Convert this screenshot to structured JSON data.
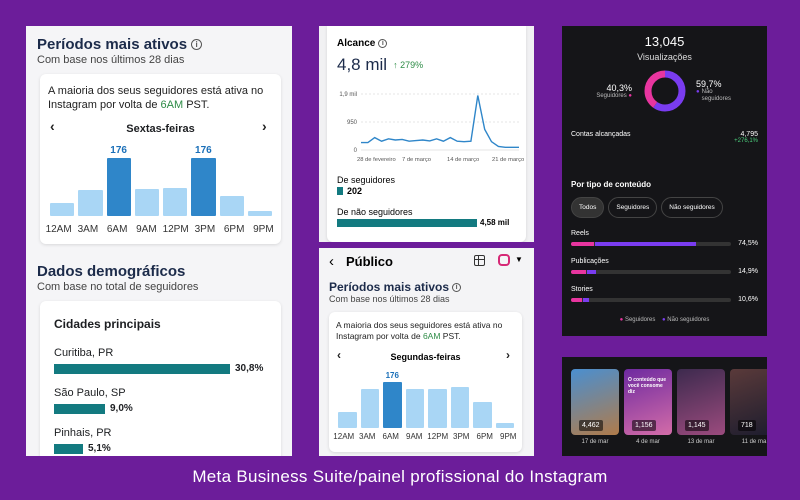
{
  "p1": {
    "title": "Períodos mais ativos",
    "subtitle": "Com base nos últimos 28 dias",
    "note_a": "A maioria dos seus seguidores está ativa no Instagram por volta de ",
    "note_hl": "6AM",
    "note_b": " PST.",
    "day": "Sextas-feiras",
    "hours": [
      "12AM",
      "3AM",
      "6AM",
      "9AM",
      "12PM",
      "3PM",
      "6PM",
      "9PM"
    ],
    "hour_values": [
      40,
      80,
      176,
      83,
      86,
      176,
      60,
      15
    ],
    "highlight_value": "176",
    "demo_title": "Dados demográficos",
    "demo_sub": "Com base no total de seguidores",
    "cities_title": "Cidades principais",
    "cities": [
      {
        "name": "Curitiba, PR",
        "pct": "30,8%",
        "value": 30.8
      },
      {
        "name": "São Paulo, SP",
        "pct": "9,0%",
        "value": 9.0
      },
      {
        "name": "Pinhais, PR",
        "pct": "5,1%",
        "value": 5.1
      }
    ]
  },
  "p2": {
    "title": "Alcance",
    "value": "4,8 mil",
    "delta": "↑ 279%",
    "y_ticks": [
      "1,9 mil",
      "950",
      "0"
    ],
    "x_ticks": [
      "28 de fevereiro",
      "7 de março",
      "14 de março",
      "21 de março"
    ],
    "line_values": [
      250,
      250,
      420,
      300,
      380,
      340,
      360,
      300,
      320,
      340,
      310,
      380,
      300,
      420,
      300,
      280,
      300,
      1850,
      700,
      280,
      120,
      90,
      90,
      90
    ],
    "followers_label": "De seguidores",
    "followers_value": "202",
    "followers_ratio": 0.044,
    "nonfollowers_label": "De não seguidores",
    "nonfollowers_value": "4,58 mil",
    "nonfollowers_ratio": 1.0
  },
  "p3": {
    "back": "‹",
    "title": "Público",
    "grid_icon": "grid-icon",
    "ig_icon": "instagram-icon",
    "section_title": "Períodos mais ativos",
    "subtitle": "Com base nos últimos 28 dias",
    "note_a": "A maioria dos seus seguidores está ativa no Instagram por volta de ",
    "note_hl": "6AM",
    "note_b": " PST.",
    "day": "Segundas-feiras",
    "hours": [
      "12AM",
      "3AM",
      "6AM",
      "9AM",
      "12PM",
      "3PM",
      "6PM",
      "9PM"
    ],
    "hour_values": [
      60,
      150,
      176,
      150,
      150,
      155,
      100,
      20
    ],
    "highlight_value": "176"
  },
  "p4": {
    "views": "13,045",
    "views_label": "Visualizações",
    "followers_pct": "40,3%",
    "followers_lbl": "Seguidores",
    "nonfollowers_pct": "59,7%",
    "nonfollowers_lbl": "Não seguidores",
    "donut_followers": 40.3,
    "reached_label": "Contas alcançadas",
    "reached_value": "4,795",
    "reached_delta": "+276,1%",
    "by_type": "Por tipo de conteúdo",
    "filters": [
      "Todos",
      "Seguidores",
      "Não seguidores"
    ],
    "content": [
      {
        "name": "Reels",
        "pct": "74,5%",
        "value": 74.5,
        "followers_share": 0.18
      },
      {
        "name": "Publicações",
        "pct": "14,9%",
        "value": 14.9,
        "followers_share": 0.6
      },
      {
        "name": "Stories",
        "pct": "10,6%",
        "value": 10.6,
        "followers_share": 0.6
      }
    ],
    "legend_followers": "Seguidores",
    "legend_nonfollowers": "Não seguidores",
    "colors": {
      "followers": "#e8359f",
      "nonfollowers": "#7a3cf0"
    }
  },
  "p5": {
    "thumbs": [
      {
        "value": "4,462",
        "date": "17 de mar"
      },
      {
        "value": "1,156",
        "date": "4 de mar",
        "overlay": "O conteúdo que você consome diz"
      },
      {
        "value": "1,145",
        "date": "13 de mar"
      },
      {
        "value": "718",
        "date": "11 de ma"
      }
    ]
  },
  "caption": "Meta Business Suite/painel profissional do Instagram"
}
